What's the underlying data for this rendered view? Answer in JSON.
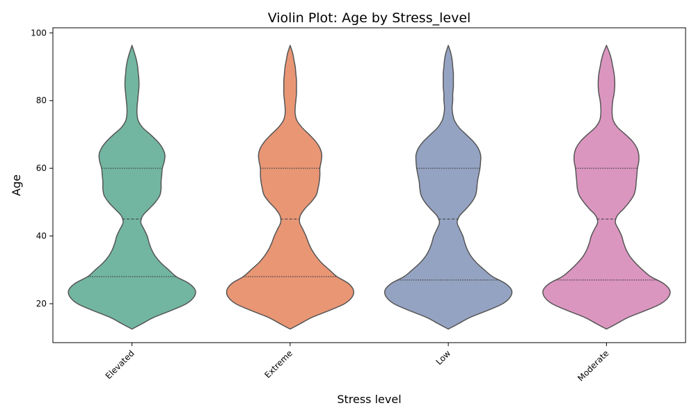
{
  "chart_data": {
    "type": "violin",
    "title": "Violin Plot: Age by Stress_level",
    "xlabel": "Stress level",
    "ylabel": "Age",
    "ylim": [
      8.5,
      101.5
    ],
    "yticks": [
      20,
      40,
      60,
      80,
      100
    ],
    "grid": false,
    "legend": "none",
    "inner": "quartile",
    "categories": [
      "Elevated",
      "Extreme",
      "Low",
      "Moderate"
    ],
    "colors": [
      "#72b6a1",
      "#e99675",
      "#95a3c3",
      "#db96c0"
    ],
    "outline_color": "#555555",
    "y_range": [
      12.5,
      96.3
    ],
    "quartiles": [
      [
        28,
        45,
        60
      ],
      [
        28,
        45,
        60
      ],
      [
        27,
        45,
        60
      ],
      [
        27,
        45,
        60
      ]
    ],
    "density_profile": {
      "ages": [
        12.5,
        14,
        16,
        18,
        20,
        22,
        24,
        26,
        28,
        30,
        32,
        34,
        36,
        38,
        40,
        42,
        44,
        46,
        48,
        50,
        52,
        54,
        56,
        58,
        60,
        62,
        64,
        66,
        68,
        70,
        72,
        74,
        76,
        78,
        80,
        82,
        84,
        86,
        88,
        90,
        92,
        94,
        96.3
      ],
      "width": [
        0.0,
        0.15,
        0.35,
        0.62,
        0.86,
        0.98,
        1.0,
        0.9,
        0.7,
        0.58,
        0.46,
        0.37,
        0.31,
        0.27,
        0.24,
        0.19,
        0.14,
        0.17,
        0.27,
        0.37,
        0.44,
        0.46,
        0.46,
        0.47,
        0.48,
        0.51,
        0.52,
        0.48,
        0.4,
        0.29,
        0.17,
        0.1,
        0.08,
        0.08,
        0.09,
        0.1,
        0.11,
        0.11,
        0.1,
        0.09,
        0.07,
        0.04,
        0.0
      ]
    },
    "widths_by_category": [
      [
        0.0,
        0.15,
        0.35,
        0.62,
        0.86,
        0.98,
        1.0,
        0.9,
        0.7,
        0.58,
        0.46,
        0.37,
        0.31,
        0.27,
        0.24,
        0.19,
        0.14,
        0.17,
        0.27,
        0.37,
        0.44,
        0.46,
        0.46,
        0.47,
        0.48,
        0.51,
        0.52,
        0.48,
        0.4,
        0.29,
        0.17,
        0.1,
        0.08,
        0.08,
        0.09,
        0.1,
        0.11,
        0.11,
        0.1,
        0.09,
        0.07,
        0.04,
        0.0
      ],
      [
        0.0,
        0.15,
        0.35,
        0.62,
        0.86,
        0.98,
        1.0,
        0.92,
        0.74,
        0.62,
        0.5,
        0.41,
        0.34,
        0.29,
        0.25,
        0.2,
        0.15,
        0.16,
        0.23,
        0.33,
        0.41,
        0.44,
        0.46,
        0.47,
        0.47,
        0.49,
        0.5,
        0.47,
        0.4,
        0.3,
        0.19,
        0.11,
        0.08,
        0.08,
        0.09,
        0.1,
        0.1,
        0.1,
        0.09,
        0.08,
        0.06,
        0.04,
        0.0
      ],
      [
        0.0,
        0.15,
        0.35,
        0.62,
        0.86,
        0.98,
        1.0,
        0.9,
        0.7,
        0.57,
        0.45,
        0.36,
        0.3,
        0.26,
        0.23,
        0.18,
        0.14,
        0.18,
        0.28,
        0.37,
        0.43,
        0.45,
        0.46,
        0.48,
        0.5,
        0.51,
        0.51,
        0.47,
        0.39,
        0.28,
        0.17,
        0.1,
        0.07,
        0.06,
        0.07,
        0.07,
        0.08,
        0.08,
        0.08,
        0.07,
        0.06,
        0.04,
        0.0
      ],
      [
        0.0,
        0.15,
        0.35,
        0.62,
        0.86,
        0.98,
        1.0,
        0.9,
        0.7,
        0.57,
        0.46,
        0.37,
        0.31,
        0.27,
        0.24,
        0.19,
        0.14,
        0.17,
        0.27,
        0.36,
        0.43,
        0.46,
        0.47,
        0.48,
        0.49,
        0.51,
        0.51,
        0.48,
        0.41,
        0.3,
        0.18,
        0.11,
        0.09,
        0.09,
        0.1,
        0.12,
        0.13,
        0.13,
        0.12,
        0.1,
        0.08,
        0.05,
        0.0
      ]
    ]
  }
}
